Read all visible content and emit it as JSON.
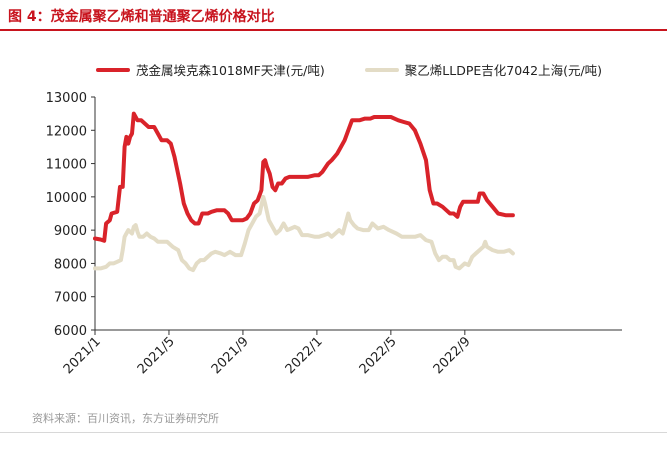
{
  "header": {
    "title": "图 4：茂金属聚乙烯和普通聚乙烯价格对比"
  },
  "footer": {
    "source": "资料来源：百川资讯，东方证券研究所"
  },
  "colors": {
    "brand_red": "#c8141e",
    "series1": "#d9232a",
    "series2": "#e3dcc6"
  },
  "chart_data": {
    "type": "line",
    "title": "茂金属聚乙烯和普通聚乙烯价格对比",
    "xlabel": "",
    "ylabel": "",
    "ylim": [
      6000,
      13000
    ],
    "yticks": [
      6000,
      7000,
      8000,
      9000,
      10000,
      11000,
      12000,
      13000
    ],
    "xlim": [
      0,
      28.5
    ],
    "xticks": [
      {
        "pos": 0,
        "label": "2021/1"
      },
      {
        "pos": 4,
        "label": "2021/5"
      },
      {
        "pos": 8,
        "label": "2021/9"
      },
      {
        "pos": 12,
        "label": "2022/1"
      },
      {
        "pos": 16,
        "label": "2022/5"
      },
      {
        "pos": 20,
        "label": "2022/9"
      }
    ],
    "legend_position": "top",
    "series": [
      {
        "name": "茂金属埃克森1018MF天津(元/吨)",
        "points": [
          [
            0.0,
            8750
          ],
          [
            0.3,
            8720
          ],
          [
            0.5,
            8680
          ],
          [
            0.6,
            9200
          ],
          [
            0.8,
            9300
          ],
          [
            0.9,
            9500
          ],
          [
            1.2,
            9550
          ],
          [
            1.35,
            10300
          ],
          [
            1.5,
            10300
          ],
          [
            1.6,
            11500
          ],
          [
            1.7,
            11800
          ],
          [
            1.8,
            11600
          ],
          [
            1.9,
            11800
          ],
          [
            2.0,
            11900
          ],
          [
            2.1,
            12500
          ],
          [
            2.3,
            12300
          ],
          [
            2.5,
            12300
          ],
          [
            2.7,
            12200
          ],
          [
            2.9,
            12100
          ],
          [
            3.2,
            12100
          ],
          [
            3.4,
            11900
          ],
          [
            3.6,
            11700
          ],
          [
            3.9,
            11700
          ],
          [
            4.1,
            11600
          ],
          [
            4.3,
            11200
          ],
          [
            4.6,
            10400
          ],
          [
            4.8,
            9800
          ],
          [
            5.0,
            9500
          ],
          [
            5.2,
            9300
          ],
          [
            5.4,
            9200
          ],
          [
            5.6,
            9200
          ],
          [
            5.8,
            9500
          ],
          [
            6.1,
            9500
          ],
          [
            6.3,
            9550
          ],
          [
            6.6,
            9600
          ],
          [
            7.0,
            9600
          ],
          [
            7.2,
            9500
          ],
          [
            7.4,
            9300
          ],
          [
            7.7,
            9300
          ],
          [
            8.0,
            9300
          ],
          [
            8.2,
            9350
          ],
          [
            8.4,
            9500
          ],
          [
            8.6,
            9800
          ],
          [
            8.8,
            9900
          ],
          [
            9.0,
            10200
          ],
          [
            9.1,
            11050
          ],
          [
            9.2,
            11100
          ],
          [
            9.3,
            10900
          ],
          [
            9.45,
            10700
          ],
          [
            9.6,
            10300
          ],
          [
            9.75,
            10200
          ],
          [
            9.9,
            10400
          ],
          [
            10.1,
            10400
          ],
          [
            10.3,
            10550
          ],
          [
            10.5,
            10600
          ],
          [
            11.0,
            10600
          ],
          [
            11.5,
            10600
          ],
          [
            11.9,
            10650
          ],
          [
            12.1,
            10650
          ],
          [
            12.3,
            10750
          ],
          [
            12.6,
            11000
          ],
          [
            12.8,
            11100
          ],
          [
            13.1,
            11300
          ],
          [
            13.5,
            11700
          ],
          [
            13.9,
            12300
          ],
          [
            14.3,
            12300
          ],
          [
            14.6,
            12350
          ],
          [
            14.9,
            12350
          ],
          [
            15.1,
            12400
          ],
          [
            15.6,
            12400
          ],
          [
            16.0,
            12400
          ],
          [
            16.4,
            12300
          ],
          [
            16.7,
            12250
          ],
          [
            17.0,
            12200
          ],
          [
            17.3,
            12000
          ],
          [
            17.6,
            11600
          ],
          [
            17.9,
            11100
          ],
          [
            18.1,
            10200
          ],
          [
            18.3,
            9800
          ],
          [
            18.5,
            9800
          ],
          [
            18.8,
            9700
          ],
          [
            19.0,
            9600
          ],
          [
            19.2,
            9500
          ],
          [
            19.4,
            9500
          ],
          [
            19.6,
            9400
          ],
          [
            19.75,
            9700
          ],
          [
            19.9,
            9850
          ],
          [
            20.2,
            9850
          ],
          [
            20.5,
            9850
          ],
          [
            20.7,
            9850
          ],
          [
            20.8,
            10100
          ],
          [
            21.0,
            10100
          ],
          [
            21.2,
            9900
          ],
          [
            21.5,
            9700
          ],
          [
            21.8,
            9500
          ],
          [
            22.2,
            9450
          ],
          [
            22.6,
            9450
          ]
        ]
      },
      {
        "name": "聚乙烯LLDPE吉化7042上海(元/吨)",
        "points": [
          [
            0.0,
            7850
          ],
          [
            0.3,
            7850
          ],
          [
            0.6,
            7900
          ],
          [
            0.8,
            8000
          ],
          [
            1.0,
            8000
          ],
          [
            1.2,
            8050
          ],
          [
            1.4,
            8100
          ],
          [
            1.5,
            8400
          ],
          [
            1.6,
            8800
          ],
          [
            1.7,
            8900
          ],
          [
            1.8,
            9000
          ],
          [
            1.9,
            8950
          ],
          [
            2.0,
            8900
          ],
          [
            2.1,
            9100
          ],
          [
            2.2,
            9150
          ],
          [
            2.3,
            8950
          ],
          [
            2.4,
            8800
          ],
          [
            2.6,
            8800
          ],
          [
            2.8,
            8900
          ],
          [
            3.0,
            8800
          ],
          [
            3.2,
            8750
          ],
          [
            3.4,
            8650
          ],
          [
            3.6,
            8650
          ],
          [
            3.9,
            8650
          ],
          [
            4.2,
            8500
          ],
          [
            4.5,
            8400
          ],
          [
            4.7,
            8100
          ],
          [
            4.9,
            8000
          ],
          [
            5.1,
            7850
          ],
          [
            5.3,
            7800
          ],
          [
            5.5,
            8000
          ],
          [
            5.7,
            8100
          ],
          [
            5.9,
            8100
          ],
          [
            6.1,
            8200
          ],
          [
            6.3,
            8300
          ],
          [
            6.5,
            8350
          ],
          [
            6.8,
            8300
          ],
          [
            7.0,
            8250
          ],
          [
            7.3,
            8350
          ],
          [
            7.6,
            8250
          ],
          [
            7.9,
            8250
          ],
          [
            8.1,
            8600
          ],
          [
            8.3,
            9000
          ],
          [
            8.5,
            9200
          ],
          [
            8.7,
            9400
          ],
          [
            8.9,
            9500
          ],
          [
            9.1,
            10000
          ],
          [
            9.2,
            9800
          ],
          [
            9.4,
            9300
          ],
          [
            9.6,
            9100
          ],
          [
            9.8,
            8900
          ],
          [
            10.0,
            9000
          ],
          [
            10.2,
            9200
          ],
          [
            10.4,
            9000
          ],
          [
            10.6,
            9050
          ],
          [
            10.8,
            9100
          ],
          [
            11.0,
            9050
          ],
          [
            11.2,
            8850
          ],
          [
            11.5,
            8850
          ],
          [
            11.9,
            8800
          ],
          [
            12.1,
            8800
          ],
          [
            12.4,
            8850
          ],
          [
            12.6,
            8900
          ],
          [
            12.8,
            8800
          ],
          [
            13.0,
            8900
          ],
          [
            13.2,
            9000
          ],
          [
            13.4,
            8900
          ],
          [
            13.6,
            9300
          ],
          [
            13.7,
            9500
          ],
          [
            13.8,
            9300
          ],
          [
            14.0,
            9150
          ],
          [
            14.2,
            9050
          ],
          [
            14.5,
            9000
          ],
          [
            14.8,
            9000
          ],
          [
            15.0,
            9200
          ],
          [
            15.3,
            9050
          ],
          [
            15.6,
            9100
          ],
          [
            15.9,
            9000
          ],
          [
            16.3,
            8900
          ],
          [
            16.6,
            8800
          ],
          [
            16.9,
            8800
          ],
          [
            17.3,
            8800
          ],
          [
            17.6,
            8850
          ],
          [
            17.9,
            8700
          ],
          [
            18.2,
            8650
          ],
          [
            18.4,
            8300
          ],
          [
            18.6,
            8100
          ],
          [
            18.8,
            8200
          ],
          [
            19.0,
            8200
          ],
          [
            19.2,
            8100
          ],
          [
            19.4,
            8100
          ],
          [
            19.5,
            7900
          ],
          [
            19.7,
            7850
          ],
          [
            20.0,
            8000
          ],
          [
            20.2,
            7950
          ],
          [
            20.4,
            8200
          ],
          [
            20.6,
            8300
          ],
          [
            20.8,
            8400
          ],
          [
            21.0,
            8500
          ],
          [
            21.1,
            8650
          ],
          [
            21.2,
            8500
          ],
          [
            21.5,
            8400
          ],
          [
            21.8,
            8350
          ],
          [
            22.1,
            8350
          ],
          [
            22.4,
            8400
          ],
          [
            22.6,
            8300
          ]
        ]
      }
    ]
  }
}
